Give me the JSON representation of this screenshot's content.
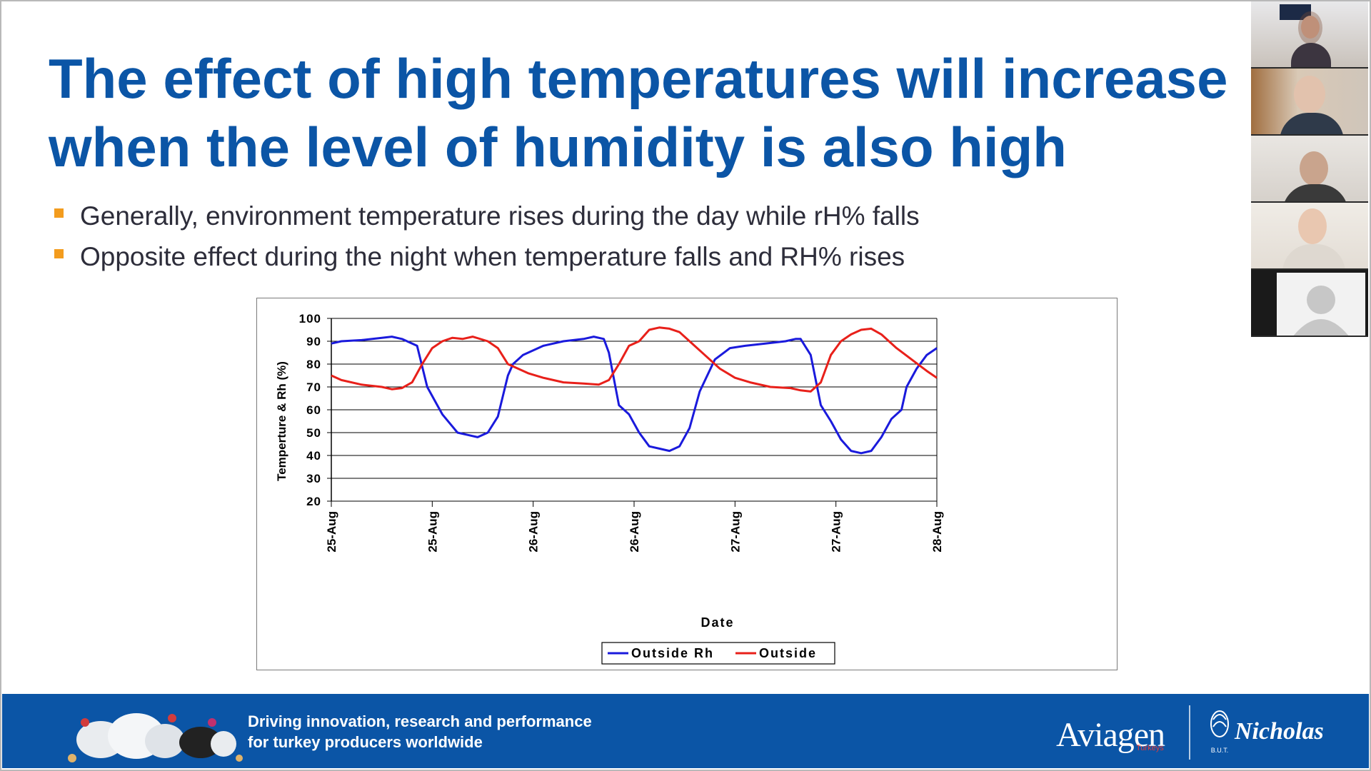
{
  "slide": {
    "title_line1": "The effect of high temperatures will increase",
    "title_line2": "when the level of humidity is also high",
    "bullets": [
      "Generally, environment temperature rises during the day while rH% falls",
      "Opposite effect during the night when temperature falls and RH% rises"
    ]
  },
  "chart_data": {
    "type": "line",
    "xlabel": "Date",
    "ylabel": "Temperture & Rh (%)",
    "ylim": [
      20,
      100
    ],
    "yticks": [
      20,
      30,
      40,
      50,
      60,
      70,
      80,
      90,
      100
    ],
    "xticks": [
      "25-Aug",
      "25-Aug",
      "26-Aug",
      "26-Aug",
      "27-Aug",
      "27-Aug",
      "28-Aug"
    ],
    "grid": true,
    "legend_position": "bottom",
    "series": [
      {
        "name": "Outside Rh",
        "color": "#1a1adc",
        "x": [
          0,
          0.1,
          0.3,
          0.5,
          0.6,
          0.7,
          0.85,
          0.95,
          1.05,
          1.1,
          1.25,
          1.35,
          1.45,
          1.55,
          1.65,
          1.75,
          1.8,
          1.9,
          2.1,
          2.3,
          2.5,
          2.6,
          2.7,
          2.75,
          2.85,
          2.95,
          3.05,
          3.15,
          3.25,
          3.35,
          3.45,
          3.55,
          3.65,
          3.8,
          3.95,
          4.1,
          4.3,
          4.5,
          4.6,
          4.65,
          4.75,
          4.85,
          4.95,
          5.05,
          5.15,
          5.25,
          5.35,
          5.45,
          5.55,
          5.65,
          5.7,
          5.8,
          5.9,
          6.0
        ],
        "y": [
          89,
          90,
          90.5,
          91.5,
          92,
          91,
          88,
          70,
          62,
          58,
          50,
          49,
          48,
          50,
          57,
          75,
          80,
          84,
          88,
          90,
          91,
          92,
          91,
          85,
          62,
          58,
          50,
          44,
          43,
          42,
          44,
          52,
          68,
          82,
          87,
          88,
          89,
          90,
          91,
          91,
          84,
          62,
          55,
          47,
          42,
          41,
          42,
          48,
          56,
          60,
          70,
          78,
          84,
          87
        ]
      },
      {
        "name": "Outside",
        "color": "#e8201a",
        "x": [
          0,
          0.1,
          0.3,
          0.5,
          0.6,
          0.7,
          0.8,
          0.9,
          1.0,
          1.1,
          1.2,
          1.3,
          1.4,
          1.55,
          1.65,
          1.75,
          1.85,
          1.95,
          2.1,
          2.3,
          2.5,
          2.65,
          2.75,
          2.85,
          2.95,
          3.05,
          3.15,
          3.25,
          3.35,
          3.45,
          3.55,
          3.7,
          3.85,
          4.0,
          4.15,
          4.35,
          4.55,
          4.65,
          4.75,
          4.85,
          4.95,
          5.05,
          5.15,
          5.25,
          5.35,
          5.45,
          5.6,
          5.75,
          5.9,
          6.0
        ],
        "y": [
          75,
          73,
          71,
          70,
          69,
          69.5,
          72,
          80,
          87,
          90,
          91.5,
          91,
          92,
          90,
          87,
          80,
          78,
          76,
          74,
          72,
          71.5,
          71,
          73,
          80,
          88,
          90,
          95,
          96,
          95.5,
          94,
          90,
          84,
          78,
          74,
          72,
          70,
          69.5,
          68.5,
          68,
          72,
          84,
          90,
          93,
          95,
          95.5,
          93,
          87,
          82,
          77,
          74
        ]
      }
    ]
  },
  "footer": {
    "tagline_line1": "Driving innovation, research and performance",
    "tagline_line2": "for turkey producers worldwide",
    "brand": "Aviagen",
    "brand_sub": "Turkeys",
    "brand2": "Nicholas",
    "but_label": "B.U.T."
  },
  "participants": [
    "participant-1",
    "participant-2",
    "participant-3",
    "participant-4",
    "participant-5"
  ]
}
